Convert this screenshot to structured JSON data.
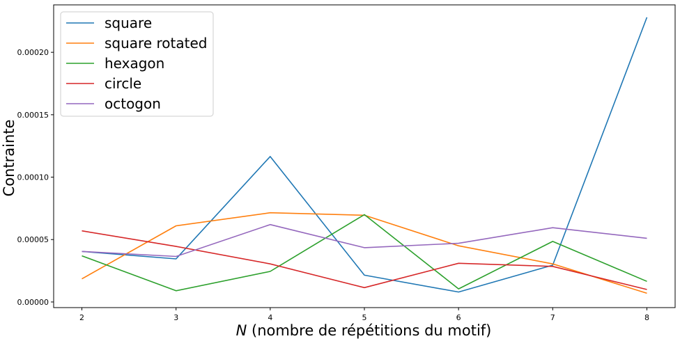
{
  "chart_data": {
    "type": "line",
    "title": "",
    "xlabel_var": "N",
    "xlabel_rest": " (nombre de répétitions du motif)",
    "ylabel": "Contrainte",
    "x": [
      2,
      3,
      4,
      5,
      6,
      7,
      8
    ],
    "xlim": [
      1.7,
      8.3
    ],
    "ylim": [
      -4.5e-06,
      0.000238
    ],
    "xticks": [
      2,
      3,
      4,
      5,
      6,
      7,
      8
    ],
    "yticks": [
      0.0,
      5e-05,
      0.0001,
      0.00015,
      0.0002
    ],
    "ytick_labels": [
      "0.00000",
      "0.00005",
      "0.00010",
      "0.00015",
      "0.00020"
    ],
    "grid": false,
    "legend_position": "top-left",
    "series": [
      {
        "name": "square",
        "color": "#1f77b4",
        "values": [
          4.05e-05,
          3.45e-05,
          0.0001165,
          2.15e-05,
          8e-06,
          2.95e-05,
          0.000228
        ]
      },
      {
        "name": "square rotated",
        "color": "#ff7f0e",
        "values": [
          1.85e-05,
          6.1e-05,
          7.15e-05,
          6.95e-05,
          4.5e-05,
          3.05e-05,
          7e-06
        ]
      },
      {
        "name": "hexagon",
        "color": "#2ca02c",
        "values": [
          3.7e-05,
          9e-06,
          2.45e-05,
          7e-05,
          1.05e-05,
          4.85e-05,
          1.65e-05
        ]
      },
      {
        "name": "circle",
        "color": "#d62728",
        "values": [
          5.7e-05,
          4.45e-05,
          3.05e-05,
          1.15e-05,
          3.1e-05,
          2.85e-05,
          1e-05
        ]
      },
      {
        "name": "octogon",
        "color": "#9467bd",
        "values": [
          4.05e-05,
          3.65e-05,
          6.2e-05,
          4.35e-05,
          4.7e-05,
          5.95e-05,
          5.1e-05
        ]
      }
    ]
  }
}
